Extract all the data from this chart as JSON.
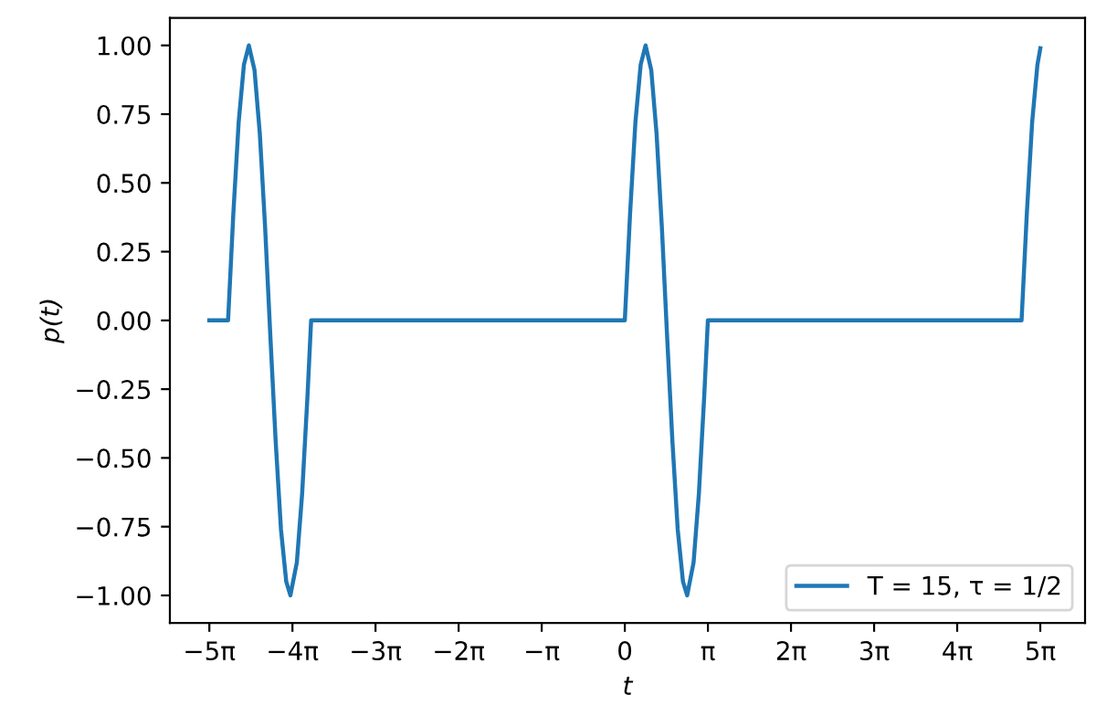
{
  "chart_data": {
    "type": "line",
    "xlabel": "t",
    "ylabel": "p(t)",
    "series": [
      {
        "name": "T = 15, τ = 1/2",
        "color": "#1f77b4",
        "x": [
          -15.71,
          -15,
          -14.8,
          -14.6,
          -14.4,
          -14.215,
          -14,
          -13.8,
          -13.6,
          -13.4,
          -13.2,
          -13,
          -12.8,
          -12.644,
          -12.4,
          -12.2,
          -12,
          -11.86,
          0,
          0.2,
          0.4,
          0.6,
          0.785,
          1.0,
          1.2,
          1.4,
          1.6,
          1.8,
          2.0,
          2.2,
          2.356,
          2.6,
          2.8,
          3.0,
          3.14,
          15,
          15.2,
          15.4,
          15.6,
          15.71
        ],
        "values": [
          0,
          0,
          0.39,
          0.72,
          0.93,
          1,
          0.91,
          0.68,
          0.34,
          -0.06,
          -0.44,
          -0.76,
          -0.95,
          -1,
          -0.88,
          -0.63,
          -0.28,
          0,
          0,
          0.39,
          0.72,
          0.93,
          1,
          0.91,
          0.68,
          0.34,
          -0.06,
          -0.44,
          -0.76,
          -0.95,
          -1,
          -0.88,
          -0.63,
          -0.28,
          0,
          0,
          0.39,
          0.72,
          0.93,
          0.99
        ]
      }
    ],
    "xlim": [
      -17.2,
      17.4
    ],
    "ylim": [
      -1.1,
      1.1
    ],
    "xticks": [
      {
        "value": -15.708,
        "label": "−5π"
      },
      {
        "value": -12.566,
        "label": "−4π"
      },
      {
        "value": -9.425,
        "label": "−3π"
      },
      {
        "value": -6.283,
        "label": "−2π"
      },
      {
        "value": -3.1416,
        "label": "−π"
      },
      0,
      {
        "value": 3.1416,
        "label": "π"
      },
      {
        "value": 6.283,
        "label": "2π"
      },
      {
        "value": 9.425,
        "label": "3π"
      },
      {
        "value": 12.566,
        "label": "4π"
      },
      {
        "value": 15.708,
        "label": "5π"
      }
    ],
    "yticks": [
      {
        "value": -1,
        "label": "−1.00"
      },
      {
        "value": -0.75,
        "label": "−0.75"
      },
      {
        "value": -0.5,
        "label": "−0.50"
      },
      {
        "value": -0.25,
        "label": "−0.25"
      },
      {
        "value": 0,
        "label": "0.00"
      },
      {
        "value": 0.25,
        "label": "0.25"
      },
      {
        "value": 0.5,
        "label": "0.50"
      },
      {
        "value": 0.75,
        "label": "0.75"
      },
      {
        "value": 1,
        "label": "1.00"
      }
    ],
    "legend": "lower right",
    "grid": false,
    "marker": "none",
    "line_style": "solid"
  }
}
